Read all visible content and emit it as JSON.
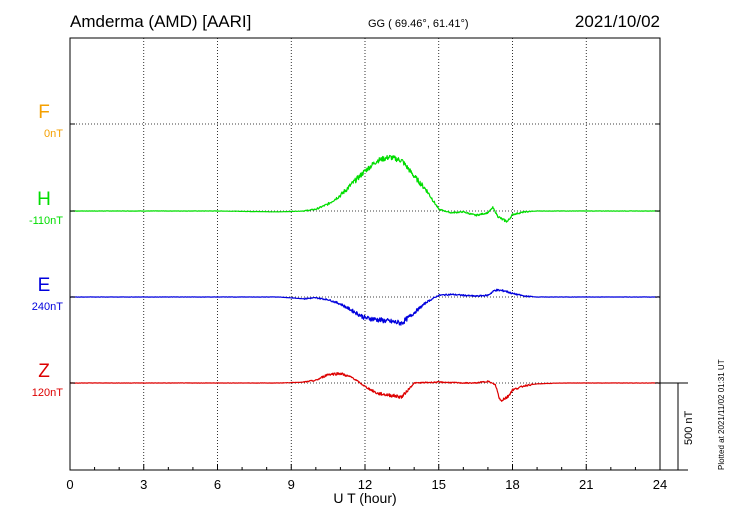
{
  "header": {
    "station": "Amderma (AMD)  [AARI]",
    "coords": "GG ( 69.46°,  61.41°)",
    "date": "2021/10/02"
  },
  "plotted_note": "Plotted at 2021/11/02 01:31  UT",
  "chart_data": {
    "type": "line",
    "xlabel": "U T (hour)",
    "xlim": [
      0,
      24
    ],
    "x_ticks": [
      "0",
      "3",
      "6",
      "9",
      "12",
      "15",
      "18",
      "21",
      "24"
    ],
    "grid": true,
    "scale_bar": "500 nT",
    "series": [
      {
        "name": "F",
        "baseline": "0nT",
        "color": "#f5a000",
        "values": []
      },
      {
        "name": "H",
        "baseline": "-110nT",
        "color": "#00dd00",
        "values": [
          [
            0,
            0
          ],
          [
            3,
            0
          ],
          [
            6,
            0
          ],
          [
            8.5,
            -5
          ],
          [
            9.5,
            0
          ],
          [
            10,
            10
          ],
          [
            10.5,
            40
          ],
          [
            11,
            90
          ],
          [
            11.5,
            160
          ],
          [
            12,
            230
          ],
          [
            12.5,
            290
          ],
          [
            13,
            310
          ],
          [
            13.5,
            290
          ],
          [
            14,
            200
          ],
          [
            14.5,
            120
          ],
          [
            15,
            10
          ],
          [
            15.5,
            -10
          ],
          [
            16,
            -5
          ],
          [
            16.5,
            -25
          ],
          [
            17,
            -10
          ],
          [
            17.2,
            20
          ],
          [
            17.4,
            -30
          ],
          [
            17.6,
            -50
          ],
          [
            17.8,
            -60
          ],
          [
            18,
            -20
          ],
          [
            18.5,
            -5
          ],
          [
            19,
            0
          ],
          [
            20,
            0
          ],
          [
            22,
            0
          ],
          [
            24,
            0
          ]
        ]
      },
      {
        "name": "E",
        "baseline": "240nT",
        "color": "#0000dd",
        "values": [
          [
            0,
            0
          ],
          [
            3,
            0
          ],
          [
            6,
            0
          ],
          [
            8.5,
            0
          ],
          [
            9,
            -5
          ],
          [
            9.5,
            -10
          ],
          [
            10,
            -5
          ],
          [
            10.5,
            -15
          ],
          [
            11,
            -40
          ],
          [
            11.5,
            -80
          ],
          [
            12,
            -120
          ],
          [
            12.5,
            -130
          ],
          [
            13,
            -140
          ],
          [
            13.5,
            -150
          ],
          [
            14,
            -90
          ],
          [
            14.5,
            -30
          ],
          [
            15,
            10
          ],
          [
            15.5,
            15
          ],
          [
            16,
            10
          ],
          [
            16.5,
            5
          ],
          [
            17,
            10
          ],
          [
            17.3,
            40
          ],
          [
            17.7,
            35
          ],
          [
            18,
            20
          ],
          [
            18.5,
            5
          ],
          [
            19,
            0
          ],
          [
            21,
            0
          ],
          [
            24,
            0
          ]
        ]
      },
      {
        "name": "Z",
        "baseline": "120nT",
        "color": "#dd0000",
        "values": [
          [
            0,
            0
          ],
          [
            3,
            0
          ],
          [
            6,
            0
          ],
          [
            8.5,
            0
          ],
          [
            9.5,
            5
          ],
          [
            10,
            15
          ],
          [
            10.5,
            50
          ],
          [
            11,
            55
          ],
          [
            11.5,
            30
          ],
          [
            12,
            -20
          ],
          [
            12.5,
            -60
          ],
          [
            13,
            -70
          ],
          [
            13.5,
            -80
          ],
          [
            14,
            0
          ],
          [
            15,
            5
          ],
          [
            16,
            0
          ],
          [
            16.5,
            0
          ],
          [
            17,
            10
          ],
          [
            17.3,
            -10
          ],
          [
            17.5,
            -100
          ],
          [
            17.8,
            -80
          ],
          [
            18,
            -40
          ],
          [
            18.5,
            -15
          ],
          [
            19,
            -5
          ],
          [
            20,
            0
          ],
          [
            22,
            0
          ],
          [
            24,
            0
          ]
        ]
      }
    ]
  }
}
